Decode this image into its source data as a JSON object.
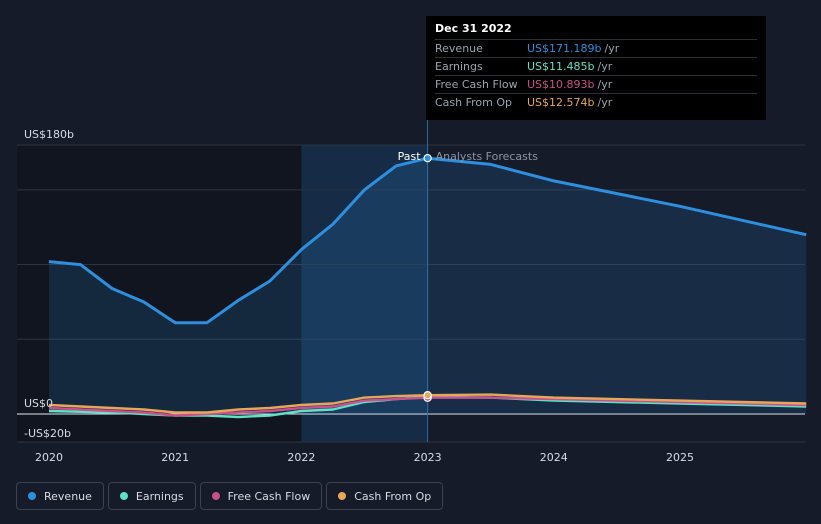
{
  "colors": {
    "background": "#151b28",
    "revenue": "#2d8fdd",
    "earnings": "#5ee1c5",
    "fcf": "#c8508c",
    "cfo": "#e6a75a"
  },
  "tooltip": {
    "date": "Dec 31 2022",
    "rows": [
      {
        "label": "Revenue",
        "value": "US$171.189b",
        "unit": "/yr",
        "color": "#2d8fdd"
      },
      {
        "label": "Earnings",
        "value": "US$11.485b",
        "unit": "/yr",
        "color": "#5ee1c5"
      },
      {
        "label": "Free Cash Flow",
        "value": "US$10.893b",
        "unit": "/yr",
        "color": "#c8508c"
      },
      {
        "label": "Cash From Op",
        "value": "US$12.574b",
        "unit": "/yr",
        "color": "#e6a75a"
      }
    ]
  },
  "divider": {
    "past_label": "Past",
    "forecast_label": "Analysts Forecasts"
  },
  "legend": [
    {
      "label": "Revenue",
      "color": "#2d8fdd",
      "icon": "revenue-dot-icon"
    },
    {
      "label": "Earnings",
      "color": "#5ee1c5",
      "icon": "earnings-dot-icon"
    },
    {
      "label": "Free Cash Flow",
      "color": "#c8508c",
      "icon": "fcf-dot-icon"
    },
    {
      "label": "Cash From Op",
      "color": "#e6a75a",
      "icon": "cfo-dot-icon"
    }
  ],
  "chart_data": {
    "type": "line",
    "y_tick_labels": [
      {
        "value": 180,
        "label": "US$180b"
      },
      {
        "value": 0,
        "label": "US$0"
      },
      {
        "value": -20,
        "label": "-US$20b"
      }
    ],
    "x_tick_labels": [
      {
        "value": 2020,
        "label": "2020"
      },
      {
        "value": 2021,
        "label": "2021"
      },
      {
        "value": 2022,
        "label": "2022"
      },
      {
        "value": 2023,
        "label": "2023"
      },
      {
        "value": 2024,
        "label": "2024"
      },
      {
        "value": 2025,
        "label": "2025"
      }
    ],
    "ylim": [
      -20,
      180
    ],
    "xlim": [
      2019.75,
      2026.0
    ],
    "divider_x": 2023.0,
    "grid": true,
    "series": [
      {
        "name": "Revenue",
        "color": "#2d8fdd",
        "points": [
          [
            2020.0,
            102
          ],
          [
            2020.25,
            100
          ],
          [
            2020.5,
            84
          ],
          [
            2020.75,
            75
          ],
          [
            2021.0,
            61
          ],
          [
            2021.25,
            61
          ],
          [
            2021.5,
            76
          ],
          [
            2021.75,
            89
          ],
          [
            2022.0,
            110
          ],
          [
            2022.25,
            127
          ],
          [
            2022.5,
            150
          ],
          [
            2022.75,
            166
          ],
          [
            2023.0,
            171.189
          ],
          [
            2023.5,
            167
          ],
          [
            2024.0,
            156
          ],
          [
            2025.0,
            139
          ],
          [
            2026.0,
            120
          ]
        ]
      },
      {
        "name": "Earnings",
        "color": "#5ee1c5",
        "points": [
          [
            2020.0,
            2
          ],
          [
            2020.5,
            1
          ],
          [
            2020.75,
            0
          ],
          [
            2021.0,
            -1
          ],
          [
            2021.25,
            -1
          ],
          [
            2021.5,
            -2
          ],
          [
            2021.75,
            -1
          ],
          [
            2022.0,
            2
          ],
          [
            2022.25,
            3
          ],
          [
            2022.5,
            8
          ],
          [
            2022.75,
            10
          ],
          [
            2023.0,
            11.485
          ],
          [
            2023.5,
            11
          ],
          [
            2024.0,
            9
          ],
          [
            2025.0,
            7
          ],
          [
            2026.0,
            5
          ]
        ]
      },
      {
        "name": "Free Cash Flow",
        "color": "#c8508c",
        "points": [
          [
            2020.0,
            4
          ],
          [
            2020.5,
            2
          ],
          [
            2020.75,
            1
          ],
          [
            2021.0,
            -1
          ],
          [
            2021.25,
            0
          ],
          [
            2021.5,
            1
          ],
          [
            2021.75,
            2
          ],
          [
            2022.0,
            4
          ],
          [
            2022.25,
            5
          ],
          [
            2022.5,
            9
          ],
          [
            2022.75,
            10
          ],
          [
            2023.0,
            10.893
          ],
          [
            2023.5,
            11
          ],
          [
            2024.0,
            10
          ],
          [
            2025.0,
            8
          ],
          [
            2026.0,
            6
          ]
        ]
      },
      {
        "name": "Cash From Op",
        "color": "#e6a75a",
        "points": [
          [
            2020.0,
            6
          ],
          [
            2020.5,
            4
          ],
          [
            2020.75,
            3
          ],
          [
            2021.0,
            1
          ],
          [
            2021.25,
            1
          ],
          [
            2021.5,
            3
          ],
          [
            2021.75,
            4
          ],
          [
            2022.0,
            6
          ],
          [
            2022.25,
            7
          ],
          [
            2022.5,
            11
          ],
          [
            2022.75,
            12
          ],
          [
            2023.0,
            12.574
          ],
          [
            2023.5,
            13
          ],
          [
            2024.0,
            11
          ],
          [
            2025.0,
            9
          ],
          [
            2026.0,
            7
          ]
        ]
      }
    ]
  }
}
